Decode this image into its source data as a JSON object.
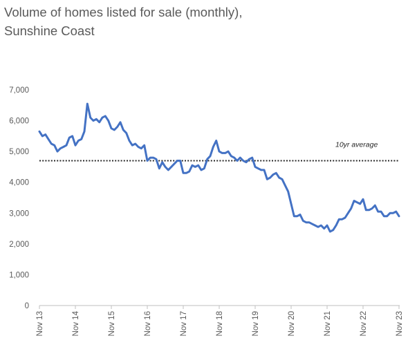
{
  "chart_data": {
    "type": "line",
    "title": "Volume of homes listed for sale (monthly), Sunshine Coast",
    "title_lines": [
      "Volume of homes listed for sale (monthly),",
      "Sunshine Coast"
    ],
    "xlabel": "",
    "ylabel": "",
    "ylim": [
      0,
      7000
    ],
    "y_ticks": [
      0,
      1000,
      2000,
      3000,
      4000,
      5000,
      6000,
      7000
    ],
    "y_tick_labels": [
      "0",
      "1,000",
      "2,000",
      "3,000",
      "4,000",
      "5,000",
      "6,000",
      "7,000"
    ],
    "x_tick_labels": [
      "Nov 13",
      "Nov 14",
      "Nov 15",
      "Nov 16",
      "Nov 17",
      "Nov 18",
      "Nov 19",
      "Nov 20",
      "Nov 21",
      "Nov 22",
      "Nov 23"
    ],
    "grid": false,
    "line_color": "#4472C4",
    "reference_line": {
      "label": "10yr average",
      "value": 4700,
      "style": "dotted",
      "color": "#262626"
    },
    "series": [
      {
        "values": [
          5650,
          5500,
          5550,
          5400,
          5250,
          5200,
          5000,
          5100,
          5150,
          5200,
          5450,
          5500,
          5200,
          5350,
          5400,
          5650,
          6550,
          6100,
          6000,
          6050,
          5950,
          6100,
          6150,
          6000,
          5750,
          5700,
          5800,
          5950,
          5700,
          5600,
          5350,
          5200,
          5250,
          5150,
          5100,
          5200,
          4700,
          4800,
          4800,
          4750,
          4450,
          4650,
          4500,
          4400,
          4500,
          4600,
          4700,
          4700,
          4300,
          4300,
          4350,
          4550,
          4500,
          4550,
          4400,
          4450,
          4750,
          4850,
          5150,
          5350,
          5000,
          4950,
          4950,
          5000,
          4850,
          4800,
          4700,
          4800,
          4700,
          4650,
          4750,
          4800,
          4500,
          4450,
          4400,
          4400,
          4100,
          4150,
          4250,
          4300,
          4150,
          4100,
          3900,
          3700,
          3300,
          2900,
          2900,
          2950,
          2750,
          2700,
          2700,
          2650,
          2600,
          2550,
          2600,
          2500,
          2600,
          2400,
          2450,
          2600,
          2800,
          2800,
          2850,
          3000,
          3150,
          3400,
          3350,
          3300,
          3450,
          3100,
          3100,
          3150,
          3250,
          3050,
          3050,
          2900,
          2900,
          3000,
          3000,
          3050,
          2900
        ]
      }
    ]
  }
}
